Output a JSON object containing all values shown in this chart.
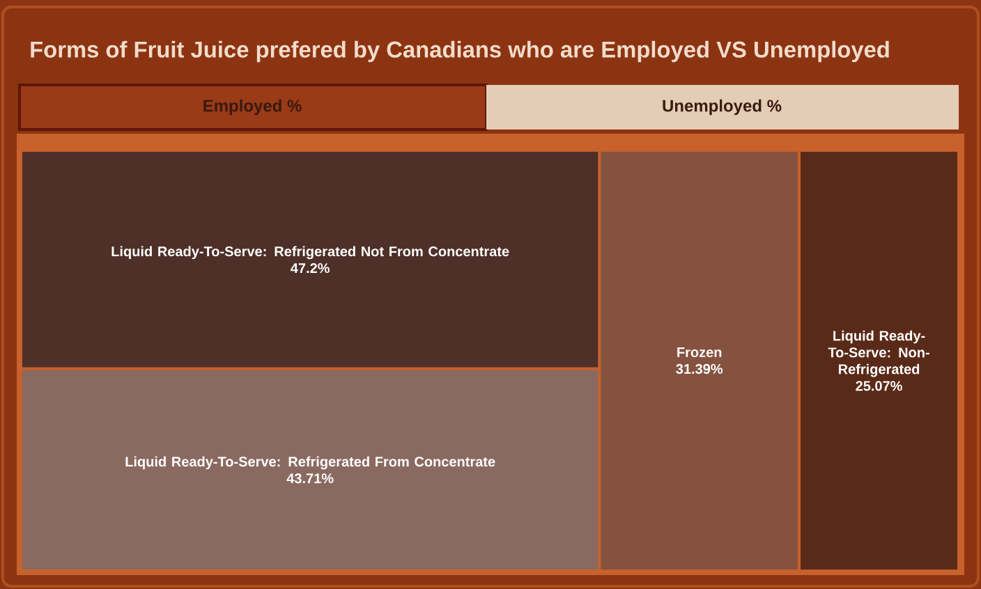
{
  "chart_data": {
    "type": "other",
    "title": "Forms of Fruit Juice prefered by Canadians who are Employed VS Unemployed",
    "annotations": [
      "Employed %",
      "Unemployed %"
    ],
    "categories": [
      "Liquid Ready-To-Serve: Refrigerated Not From Concentrate",
      "Liquid Ready-To-Serve: Refrigerated From Concentrate",
      "Frozen",
      "Liquid Ready-To-Serve: Non-Refrigerated"
    ],
    "values": [
      47.2,
      43.71,
      31.39,
      25.07
    ],
    "value_labels": [
      "47.2%",
      "43.71%",
      "31.39%",
      "25.07%"
    ],
    "colors": [
      "#4e3028",
      "#8a6a60",
      "#85523f",
      "#5a2a18"
    ]
  }
}
